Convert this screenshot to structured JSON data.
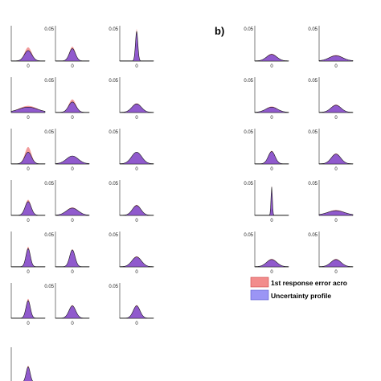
{
  "figure": {
    "panel_b_label": "b)",
    "legend": [
      {
        "label": "1st response error acro",
        "color": "#f28c8c"
      },
      {
        "label": "Uncertainty profile",
        "color": "#9b95f5"
      }
    ],
    "colors": {
      "response": "#f08a8a",
      "uncertainty": "#7f4fd6",
      "outline": "#1a1a1a"
    }
  },
  "chart_data": [
    {
      "type": "area",
      "title": "",
      "xlabel": "",
      "ylabel": "",
      "x_tick": "0",
      "y_tick": "0.05",
      "ylim": [
        0,
        0.055
      ],
      "grid": false,
      "legend": "right",
      "series": [
        {
          "name": "1st response error acro"
        },
        {
          "name": "Uncertainty profile"
        }
      ],
      "subplots": [
        {
          "col": 0,
          "row": 0,
          "peak": 0.016,
          "sd": 0.22,
          "resp_peak": 0.021
        },
        {
          "col": 1,
          "row": 0,
          "peak": 0.019,
          "sd": 0.18,
          "resp_peak": 0.022
        },
        {
          "col": 2,
          "row": 0,
          "peak": 0.046,
          "sd": 0.07,
          "resp_peak": 0.05
        },
        {
          "col": 0,
          "row": 1,
          "peak": 0.008,
          "sd": 0.55,
          "resp_peak": 0.01
        },
        {
          "col": 1,
          "row": 1,
          "peak": 0.016,
          "sd": 0.22,
          "resp_peak": 0.02
        },
        {
          "col": 2,
          "row": 1,
          "peak": 0.013,
          "sd": 0.28,
          "resp_peak": 0.014
        },
        {
          "col": 0,
          "row": 2,
          "peak": 0.018,
          "sd": 0.2,
          "resp_peak": 0.026
        },
        {
          "col": 1,
          "row": 2,
          "peak": 0.012,
          "sd": 0.35,
          "resp_peak": 0.012
        },
        {
          "col": 2,
          "row": 2,
          "peak": 0.018,
          "sd": 0.3,
          "resp_peak": 0.018
        },
        {
          "col": 0,
          "row": 3,
          "peak": 0.021,
          "sd": 0.18,
          "resp_peak": 0.024
        },
        {
          "col": 1,
          "row": 3,
          "peak": 0.011,
          "sd": 0.35,
          "resp_peak": 0.012
        },
        {
          "col": 2,
          "row": 3,
          "peak": 0.015,
          "sd": 0.25,
          "resp_peak": 0.016
        },
        {
          "col": 0,
          "row": 4,
          "peak": 0.028,
          "sd": 0.13,
          "resp_peak": 0.031
        },
        {
          "col": 1,
          "row": 4,
          "peak": 0.026,
          "sd": 0.16,
          "resp_peak": 0.027
        },
        {
          "col": 2,
          "row": 4,
          "peak": 0.015,
          "sd": 0.28,
          "resp_peak": 0.016
        },
        {
          "col": 0,
          "row": 5,
          "peak": 0.027,
          "sd": 0.13,
          "resp_peak": 0.03
        },
        {
          "col": 1,
          "row": 5,
          "peak": 0.019,
          "sd": 0.2,
          "resp_peak": 0.02
        },
        {
          "col": 2,
          "row": 5,
          "peak": 0.019,
          "sd": 0.2,
          "resp_peak": 0.02
        },
        {
          "col": 0,
          "row": 6,
          "peak": 0.024,
          "sd": 0.12,
          "resp_peak": 0.026
        },
        {
          "col": 3,
          "row": 0,
          "peak": 0.01,
          "sd": 0.3,
          "resp_peak": 0.011
        },
        {
          "col": 4,
          "row": 0,
          "peak": 0.008,
          "sd": 0.4,
          "resp_peak": 0.009
        },
        {
          "col": 3,
          "row": 1,
          "peak": 0.008,
          "sd": 0.35,
          "resp_peak": 0.009
        },
        {
          "col": 4,
          "row": 1,
          "peak": 0.011,
          "sd": 0.3,
          "resp_peak": 0.012
        },
        {
          "col": 3,
          "row": 2,
          "peak": 0.019,
          "sd": 0.2,
          "resp_peak": 0.02
        },
        {
          "col": 4,
          "row": 2,
          "peak": 0.015,
          "sd": 0.28,
          "resp_peak": 0.016
        },
        {
          "col": 3,
          "row": 3,
          "peak": 0.044,
          "sd": 0.04,
          "resp_peak": 0.046
        },
        {
          "col": 4,
          "row": 3,
          "peak": 0.007,
          "sd": 0.5,
          "resp_peak": 0.008
        },
        {
          "col": 3,
          "row": 4,
          "peak": 0.011,
          "sd": 0.3,
          "resp_peak": 0.012
        },
        {
          "col": 4,
          "row": 4,
          "peak": 0.011,
          "sd": 0.3,
          "resp_peak": 0.012
        }
      ]
    }
  ]
}
